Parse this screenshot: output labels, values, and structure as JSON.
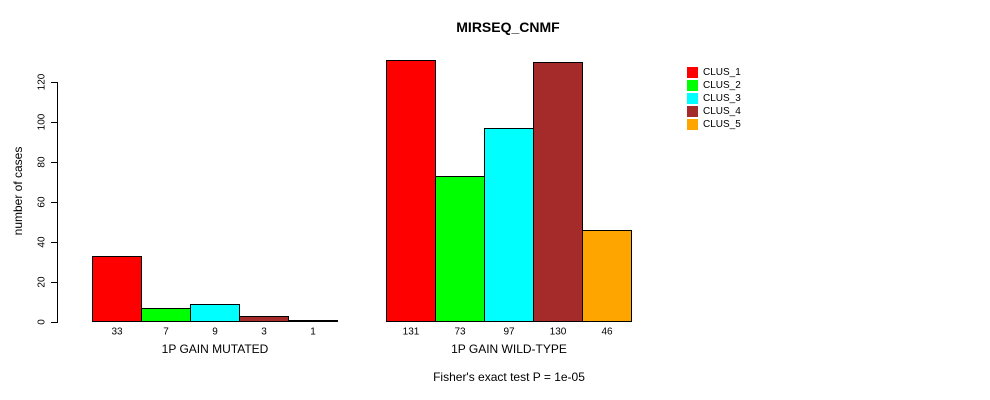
{
  "title": "MIRSEQ_CNMF",
  "y_axis": {
    "label": "number of cases",
    "ticks": [
      0,
      20,
      40,
      60,
      80,
      100,
      120
    ]
  },
  "caption": "Fisher's exact test P = 1e-05",
  "legend": {
    "items": [
      {
        "label": "CLUS_1",
        "color": "#ff0000"
      },
      {
        "label": "CLUS_2",
        "color": "#00ff00"
      },
      {
        "label": "CLUS_3",
        "color": "#00ffff"
      },
      {
        "label": "CLUS_4",
        "color": "#a52a2a"
      },
      {
        "label": "CLUS_5",
        "color": "#ffa500"
      }
    ]
  },
  "chart_data": {
    "type": "bar",
    "title": "MIRSEQ_CNMF",
    "xlabel": "",
    "ylabel": "number of cases",
    "ylim": [
      0,
      135
    ],
    "yticks": [
      0,
      20,
      40,
      60,
      80,
      100,
      120
    ],
    "grid": false,
    "legend_position": "right",
    "bar_value_labels": true,
    "categories": [
      "1P GAIN MUTATED",
      "1P GAIN WILD-TYPE"
    ],
    "series": [
      {
        "name": "CLUS_1",
        "color": "#ff0000",
        "values": [
          33,
          131
        ]
      },
      {
        "name": "CLUS_2",
        "color": "#00ff00",
        "values": [
          7,
          73
        ]
      },
      {
        "name": "CLUS_3",
        "color": "#00ffff",
        "values": [
          9,
          97
        ]
      },
      {
        "name": "CLUS_4",
        "color": "#a52a2a",
        "values": [
          3,
          130
        ]
      },
      {
        "name": "CLUS_5",
        "color": "#ffa500",
        "values": [
          1,
          46
        ]
      }
    ],
    "annotation": "Fisher's exact test P = 1e-05"
  }
}
